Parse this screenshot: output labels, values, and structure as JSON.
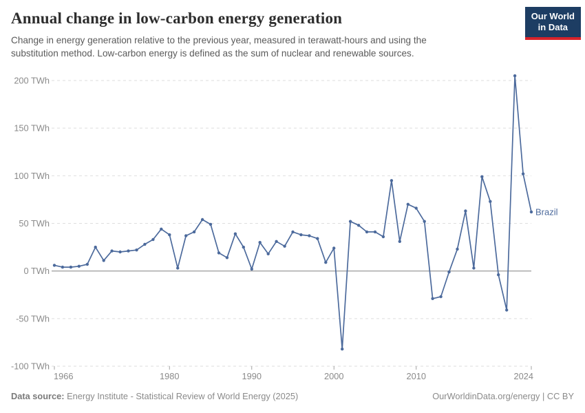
{
  "header": {
    "title": "Annual change in low-carbon energy generation",
    "subtitle": "Change in energy generation relative to the previous year, measured in terawatt-hours and using the substitution method. Low-carbon energy is defined as the sum of nuclear and renewable sources.",
    "logo": {
      "line1": "Our World",
      "line2": "in Data"
    }
  },
  "chart_data": {
    "type": "line",
    "title": "Annual change in low-carbon energy generation",
    "unit": "TWh",
    "xlabel": "",
    "ylabel": "",
    "xlim": [
      1966,
      2024
    ],
    "ylim": [
      -100,
      200
    ],
    "grid": "dashed-horizontal",
    "legend_position": "end-of-line",
    "xticks": [
      1966,
      1980,
      1990,
      2000,
      2010,
      2024
    ],
    "yticks": [
      200,
      150,
      100,
      50,
      0,
      -50,
      -100
    ],
    "ytick_labels": [
      "200 TWh",
      "150 TWh",
      "100 TWh",
      "50 TWh",
      "0 TWh",
      "-50 TWh",
      "-100 TWh"
    ],
    "x": [
      1966,
      1967,
      1968,
      1969,
      1970,
      1971,
      1972,
      1973,
      1974,
      1975,
      1976,
      1977,
      1978,
      1979,
      1980,
      1981,
      1982,
      1983,
      1984,
      1985,
      1986,
      1987,
      1988,
      1989,
      1990,
      1991,
      1992,
      1993,
      1994,
      1995,
      1996,
      1997,
      1998,
      1999,
      2000,
      2001,
      2002,
      2003,
      2004,
      2005,
      2006,
      2007,
      2008,
      2009,
      2010,
      2011,
      2012,
      2013,
      2014,
      2015,
      2016,
      2017,
      2018,
      2019,
      2020,
      2021,
      2022,
      2023,
      2024
    ],
    "series": [
      {
        "name": "Brazil",
        "color": "#4c6a9c",
        "values": [
          6,
          4,
          4,
          5,
          7,
          25,
          11,
          21,
          20,
          21,
          22,
          28,
          33,
          44,
          38,
          3,
          37,
          41,
          54,
          49,
          19,
          14,
          39,
          25,
          2,
          30,
          18,
          31,
          26,
          41,
          38,
          37,
          34,
          9,
          24,
          -82,
          52,
          48,
          41,
          41,
          36,
          95,
          31,
          70,
          66,
          52,
          -29,
          -27,
          -1,
          23,
          63,
          3,
          99,
          73,
          -4,
          -41,
          205,
          102,
          62
        ]
      }
    ]
  },
  "footer": {
    "source_label": "Data source:",
    "source_text": "Energy Institute - Statistical Review of World Energy (2025)",
    "link_text": "OurWorldinData.org/energy | CC BY"
  },
  "colors": {
    "line": "#4c6a9c",
    "grid": "#dedede",
    "zero_line": "#a3a3a3",
    "axis_text": "#8a8a8a",
    "logo_bg": "#1d3d63",
    "logo_accent": "#d8232a"
  }
}
